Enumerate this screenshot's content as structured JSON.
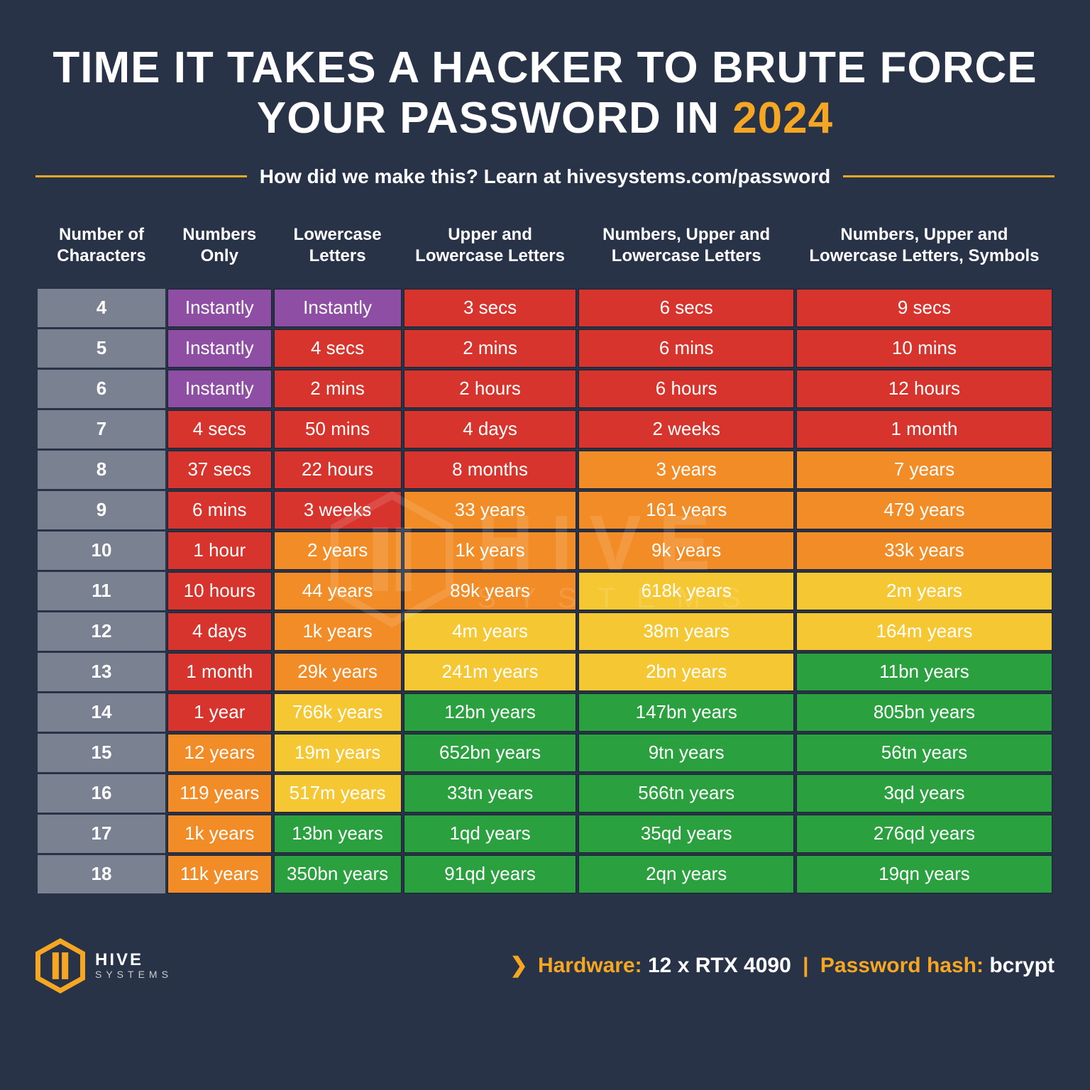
{
  "title_part1": "TIME IT TAKES A HACKER TO BRUTE FORCE YOUR PASSWORD IN ",
  "title_year": "2024",
  "subtitle": "How did we make this? Learn at hivesystems.com/password",
  "colors": {
    "purple": "#8e4ea3",
    "red": "#d6342c",
    "orange": "#f28c26",
    "yellow": "#f5c733",
    "green": "#2aa03f",
    "rowhead": "#7a8291",
    "accent": "#f5a623",
    "bg": "#283347",
    "cell_border": "#1a2233"
  },
  "columns": [
    "Number of Characters",
    "Numbers Only",
    "Lowercase Letters",
    "Upper and Lowercase Letters",
    "Numbers, Upper and Lowercase Letters",
    "Numbers, Upper and Lowercase Letters, Symbols"
  ],
  "row_labels": [
    "4",
    "5",
    "6",
    "7",
    "8",
    "9",
    "10",
    "11",
    "12",
    "13",
    "14",
    "15",
    "16",
    "17",
    "18"
  ],
  "cells": [
    [
      {
        "v": "Instantly",
        "c": "purple"
      },
      {
        "v": "Instantly",
        "c": "purple"
      },
      {
        "v": "3 secs",
        "c": "red"
      },
      {
        "v": "6 secs",
        "c": "red"
      },
      {
        "v": "9 secs",
        "c": "red"
      }
    ],
    [
      {
        "v": "Instantly",
        "c": "purple"
      },
      {
        "v": "4 secs",
        "c": "red"
      },
      {
        "v": "2 mins",
        "c": "red"
      },
      {
        "v": "6 mins",
        "c": "red"
      },
      {
        "v": "10 mins",
        "c": "red"
      }
    ],
    [
      {
        "v": "Instantly",
        "c": "purple"
      },
      {
        "v": "2 mins",
        "c": "red"
      },
      {
        "v": "2 hours",
        "c": "red"
      },
      {
        "v": "6 hours",
        "c": "red"
      },
      {
        "v": "12 hours",
        "c": "red"
      }
    ],
    [
      {
        "v": "4 secs",
        "c": "red"
      },
      {
        "v": "50 mins",
        "c": "red"
      },
      {
        "v": "4 days",
        "c": "red"
      },
      {
        "v": "2 weeks",
        "c": "red"
      },
      {
        "v": "1 month",
        "c": "red"
      }
    ],
    [
      {
        "v": "37 secs",
        "c": "red"
      },
      {
        "v": "22 hours",
        "c": "red"
      },
      {
        "v": "8 months",
        "c": "red"
      },
      {
        "v": "3 years",
        "c": "orange"
      },
      {
        "v": "7 years",
        "c": "orange"
      }
    ],
    [
      {
        "v": "6 mins",
        "c": "red"
      },
      {
        "v": "3 weeks",
        "c": "red"
      },
      {
        "v": "33 years",
        "c": "orange"
      },
      {
        "v": "161 years",
        "c": "orange"
      },
      {
        "v": "479 years",
        "c": "orange"
      }
    ],
    [
      {
        "v": "1 hour",
        "c": "red"
      },
      {
        "v": "2 years",
        "c": "orange"
      },
      {
        "v": "1k years",
        "c": "orange"
      },
      {
        "v": "9k years",
        "c": "orange"
      },
      {
        "v": "33k years",
        "c": "orange"
      }
    ],
    [
      {
        "v": "10 hours",
        "c": "red"
      },
      {
        "v": "44 years",
        "c": "orange"
      },
      {
        "v": "89k years",
        "c": "orange"
      },
      {
        "v": "618k years",
        "c": "yellow"
      },
      {
        "v": "2m years",
        "c": "yellow"
      }
    ],
    [
      {
        "v": "4 days",
        "c": "red"
      },
      {
        "v": "1k years",
        "c": "orange"
      },
      {
        "v": "4m years",
        "c": "yellow"
      },
      {
        "v": "38m years",
        "c": "yellow"
      },
      {
        "v": "164m years",
        "c": "yellow"
      }
    ],
    [
      {
        "v": "1 month",
        "c": "red"
      },
      {
        "v": "29k years",
        "c": "orange"
      },
      {
        "v": "241m years",
        "c": "yellow"
      },
      {
        "v": "2bn years",
        "c": "yellow"
      },
      {
        "v": "11bn years",
        "c": "green"
      }
    ],
    [
      {
        "v": "1 year",
        "c": "red"
      },
      {
        "v": "766k years",
        "c": "yellow"
      },
      {
        "v": "12bn years",
        "c": "green"
      },
      {
        "v": "147bn years",
        "c": "green"
      },
      {
        "v": "805bn years",
        "c": "green"
      }
    ],
    [
      {
        "v": "12 years",
        "c": "orange"
      },
      {
        "v": "19m years",
        "c": "yellow"
      },
      {
        "v": "652bn years",
        "c": "green"
      },
      {
        "v": "9tn years",
        "c": "green"
      },
      {
        "v": "56tn years",
        "c": "green"
      }
    ],
    [
      {
        "v": "119 years",
        "c": "orange"
      },
      {
        "v": "517m years",
        "c": "yellow"
      },
      {
        "v": "33tn years",
        "c": "green"
      },
      {
        "v": "566tn years",
        "c": "green"
      },
      {
        "v": "3qd years",
        "c": "green"
      }
    ],
    [
      {
        "v": "1k years",
        "c": "orange"
      },
      {
        "v": "13bn years",
        "c": "green"
      },
      {
        "v": "1qd years",
        "c": "green"
      },
      {
        "v": "35qd years",
        "c": "green"
      },
      {
        "v": "276qd years",
        "c": "green"
      }
    ],
    [
      {
        "v": "11k years",
        "c": "orange"
      },
      {
        "v": "350bn years",
        "c": "green"
      },
      {
        "v": "91qd years",
        "c": "green"
      },
      {
        "v": "2qn years",
        "c": "green"
      },
      {
        "v": "19qn years",
        "c": "green"
      }
    ]
  ],
  "logo": {
    "name": "HIVE",
    "sub": "SYSTEMS"
  },
  "footer": {
    "hardware_label": "Hardware:",
    "hardware_value": "12 x RTX 4090",
    "hash_label": "Password hash:",
    "hash_value": "bcrypt"
  },
  "watermark": {
    "name": "HIVE",
    "sub": "SYSTEMS"
  }
}
